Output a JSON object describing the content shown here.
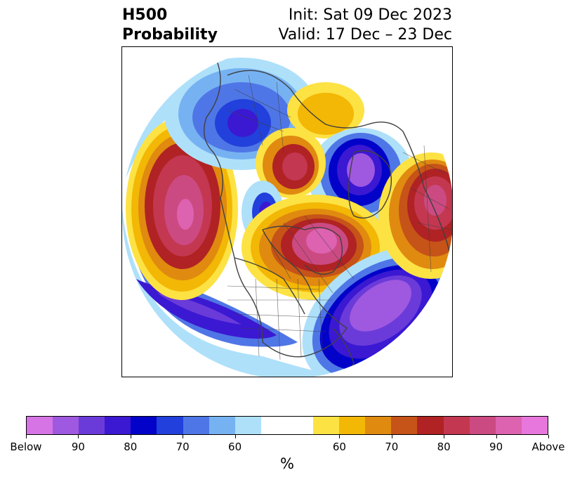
{
  "header": {
    "title_line1": "H500",
    "title_line2": "Probability",
    "init": "Init: Sat 09 Dec 2023",
    "valid": "Valid: 17 Dec – 23 Dec"
  },
  "colorbar": {
    "colors": [
      "#d674e6",
      "#9f58e0",
      "#6a3bd9",
      "#3b18d2",
      "#0202c9",
      "#2240db",
      "#4f76e6",
      "#76b2f2",
      "#aee0fa",
      "#ffffff",
      "#ffffff",
      "#fde243",
      "#f3b705",
      "#e08a10",
      "#c65318",
      "#b02224",
      "#c33750",
      "#cc4a82",
      "#dd62b0",
      "#e777dc"
    ],
    "labels": [
      "Below",
      "90",
      "80",
      "70",
      "60",
      "60",
      "70",
      "80",
      "90",
      "Above"
    ],
    "unit": "%"
  },
  "palette": {
    "below_far": "#9f58e0",
    "below_strong": "#0202c9",
    "below_mid": "#4f76e6",
    "below_light": "#aee0fa",
    "above_light": "#fde243",
    "above_mid": "#f3b705",
    "above_orange": "#e08a10",
    "above_strong": "#b02224",
    "above_far": "#cc4a82",
    "coast": "#404040"
  }
}
